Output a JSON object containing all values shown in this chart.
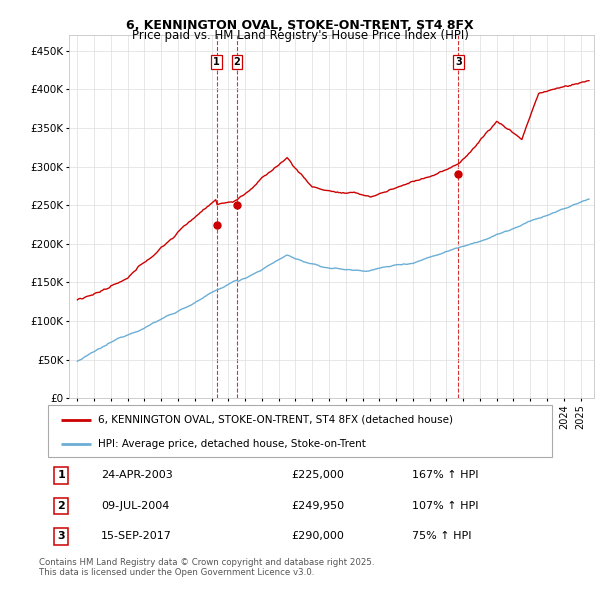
{
  "title": "6, KENNINGTON OVAL, STOKE-ON-TRENT, ST4 8FX",
  "subtitle": "Price paid vs. HM Land Registry's House Price Index (HPI)",
  "ylim": [
    0,
    470000
  ],
  "yticks": [
    0,
    50000,
    100000,
    150000,
    200000,
    250000,
    300000,
    350000,
    400000,
    450000
  ],
  "ytick_labels": [
    "£0",
    "£50K",
    "£100K",
    "£150K",
    "£200K",
    "£250K",
    "£300K",
    "£350K",
    "£400K",
    "£450K"
  ],
  "hpi_color": "#6baed6",
  "sold_color": "#cc0000",
  "marker_color": "#cc0000",
  "vline_color": "#cc0000",
  "xlim_left": 1994.5,
  "xlim_right": 2025.8,
  "transactions": [
    {
      "label": "1",
      "date_num": 2003.31,
      "price": 225000,
      "text": "24-APR-2003",
      "price_str": "£225,000",
      "pct": "167% ↑ HPI"
    },
    {
      "label": "2",
      "date_num": 2004.52,
      "price": 249950,
      "text": "09-JUL-2004",
      "price_str": "£249,950",
      "pct": "107% ↑ HPI"
    },
    {
      "label": "3",
      "date_num": 2017.71,
      "price": 290000,
      "text": "15-SEP-2017",
      "price_str": "£290,000",
      "pct": "75% ↑ HPI"
    }
  ],
  "legend_sold_label": "6, KENNINGTON OVAL, STOKE-ON-TRENT, ST4 8FX (detached house)",
  "legend_hpi_label": "HPI: Average price, detached house, Stoke-on-Trent",
  "footnote": "Contains HM Land Registry data © Crown copyright and database right 2025.\nThis data is licensed under the Open Government Licence v3.0.",
  "background_color": "#ffffff",
  "plot_bg_color": "#ffffff",
  "grid_color": "#dddddd",
  "title_fontsize": 9,
  "subtitle_fontsize": 8.5,
  "tick_fontsize": 7.5,
  "legend_fontsize": 7.5
}
